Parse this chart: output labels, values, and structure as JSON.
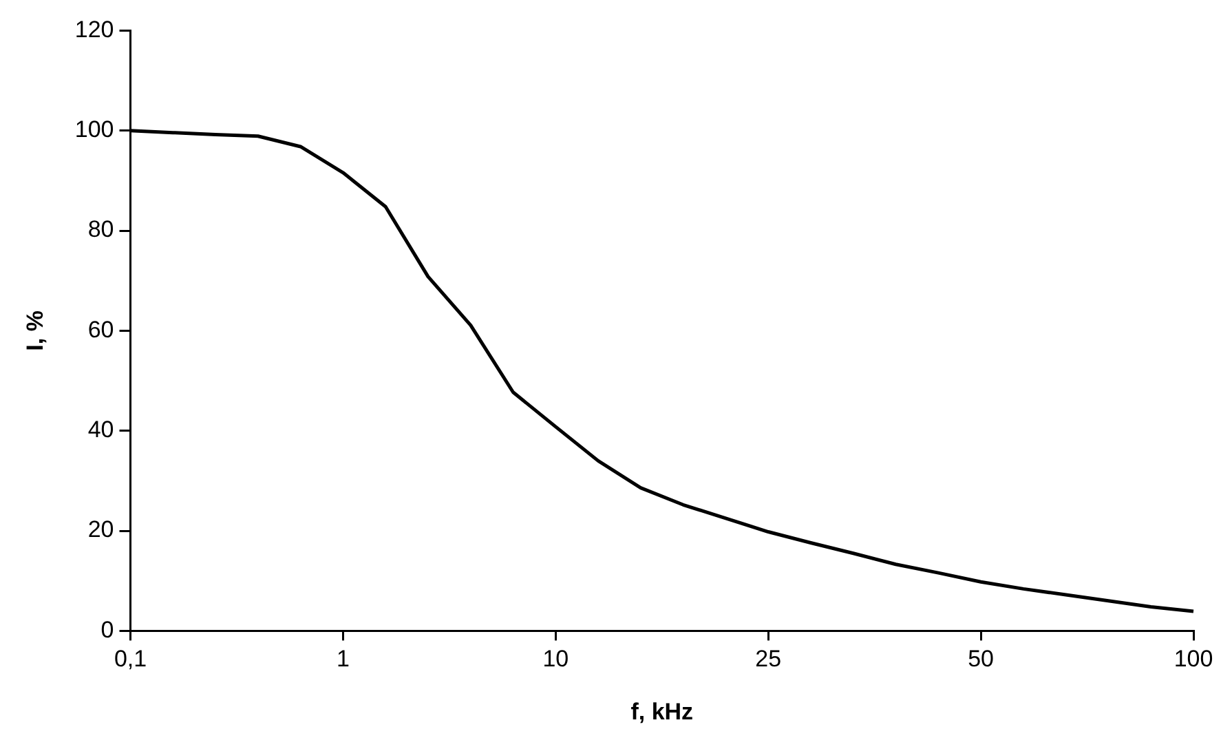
{
  "chart_data": {
    "type": "line",
    "xlabel": "f, kHz",
    "ylabel": "I, %",
    "categories": [
      "0,1",
      null,
      null,
      null,
      null,
      "1",
      null,
      null,
      null,
      null,
      "10",
      null,
      null,
      null,
      null,
      "25",
      null,
      null,
      null,
      null,
      "50",
      null,
      null,
      null,
      null,
      "100"
    ],
    "series": [
      {
        "color": "#000000",
        "values": [
          100,
          99.6,
          99.2,
          98.9,
          96.8,
          91.6,
          84.8,
          70.8,
          61.1,
          47.7,
          40.8,
          34,
          28.6,
          25.2,
          22.5,
          19.8,
          17.6,
          15.5,
          13.3,
          11.6,
          9.8,
          8.4,
          7.2,
          6,
          4.8,
          3.9
        ]
      }
    ],
    "ylim": [
      0,
      120
    ],
    "yticks": [
      0,
      20,
      40,
      60,
      80,
      100,
      120
    ],
    "grid": false,
    "legend": false,
    "marker": "none",
    "line_style": "solid"
  }
}
